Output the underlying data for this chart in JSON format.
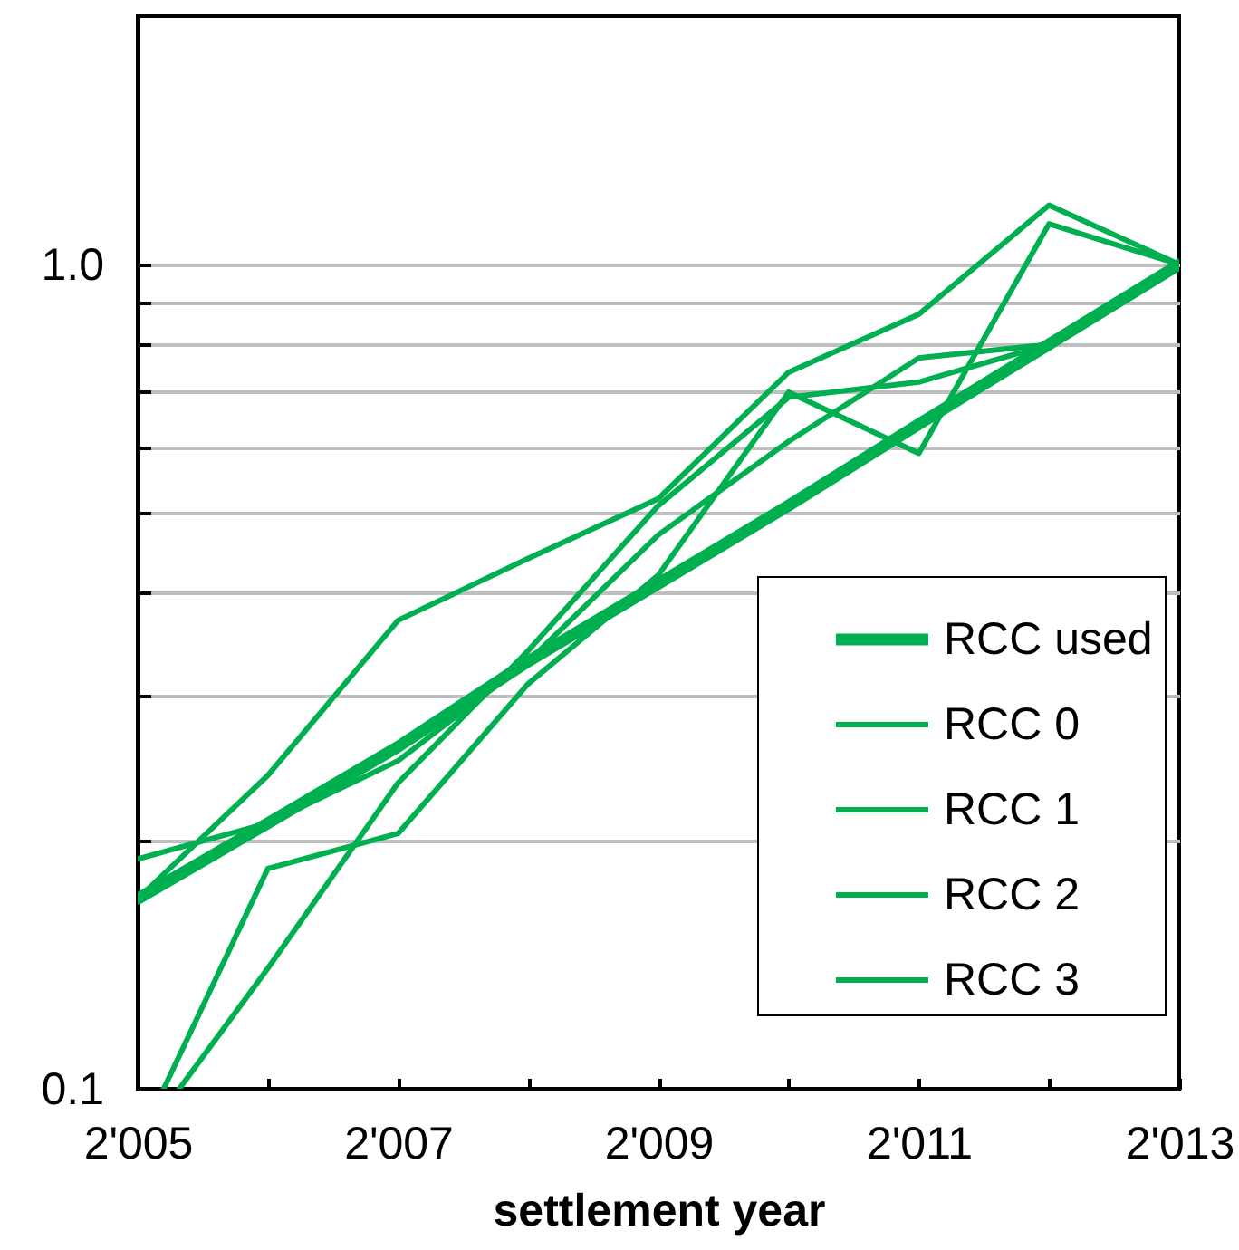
{
  "chart_data": {
    "type": "line",
    "xlabel": "settlement year",
    "x": [
      2005,
      2006,
      2007,
      2008,
      2009,
      2010,
      2011,
      2012,
      2013
    ],
    "series": [
      {
        "name": "RCC used",
        "color": "#00b050",
        "values": [
          0.17,
          0.21,
          0.26,
          0.33,
          0.41,
          0.51,
          0.64,
          0.8,
          1.0
        ]
      },
      {
        "name": "RCC 0",
        "color": "#00b050",
        "values": [
          0.17,
          0.24,
          0.37,
          0.44,
          0.52,
          0.74,
          0.87,
          1.18,
          1.0
        ]
      },
      {
        "name": "RCC 1",
        "color": "#00b050",
        "values": [
          0.19,
          0.21,
          0.25,
          0.33,
          0.47,
          0.61,
          0.77,
          0.8,
          1.0
        ]
      },
      {
        "name": "RCC 2",
        "color": "#00b050",
        "x": [
          2005.2,
          2006,
          2007,
          2008,
          2009,
          2010,
          2011,
          2012,
          2013
        ],
        "values": [
          0.1,
          0.185,
          0.204,
          0.31,
          0.42,
          0.7,
          0.59,
          1.12,
          1.0
        ]
      },
      {
        "name": "RCC 3",
        "color": "#00b050",
        "x": [
          2005.32,
          2006,
          2007,
          2008,
          2009,
          2010,
          2011,
          2012,
          2013
        ],
        "values": [
          0.1,
          0.14,
          0.235,
          0.34,
          0.51,
          0.69,
          0.72,
          0.8,
          1.0
        ]
      }
    ],
    "xlim": [
      2005,
      2013
    ],
    "xticks": [
      {
        "value": 2005,
        "label": "2'005"
      },
      {
        "value": 2006,
        "label": null
      },
      {
        "value": 2007,
        "label": "2'007"
      },
      {
        "value": 2008,
        "label": null
      },
      {
        "value": 2009,
        "label": "2'009"
      },
      {
        "value": 2010,
        "label": null
      },
      {
        "value": 2011,
        "label": "2'011"
      },
      {
        "value": 2012,
        "label": null
      },
      {
        "value": 2013,
        "label": "2'013"
      }
    ],
    "ylim": [
      0.1,
      2
    ],
    "yticks": [
      0.1,
      {
        "value": 0.2,
        "label": null
      },
      {
        "value": 0.3,
        "label": null
      },
      {
        "value": 0.4,
        "label": null
      },
      {
        "value": 0.5,
        "label": null
      },
      {
        "value": 0.6,
        "label": null
      },
      {
        "value": 0.7,
        "label": null
      },
      {
        "value": 0.8,
        "label": null
      },
      {
        "value": 0.9,
        "label": null
      },
      {
        "value": 1,
        "label": "1.0"
      }
    ],
    "log": "y",
    "grid": "y",
    "legend": "bottom right",
    "marker": "none",
    "line_style": "solid"
  }
}
